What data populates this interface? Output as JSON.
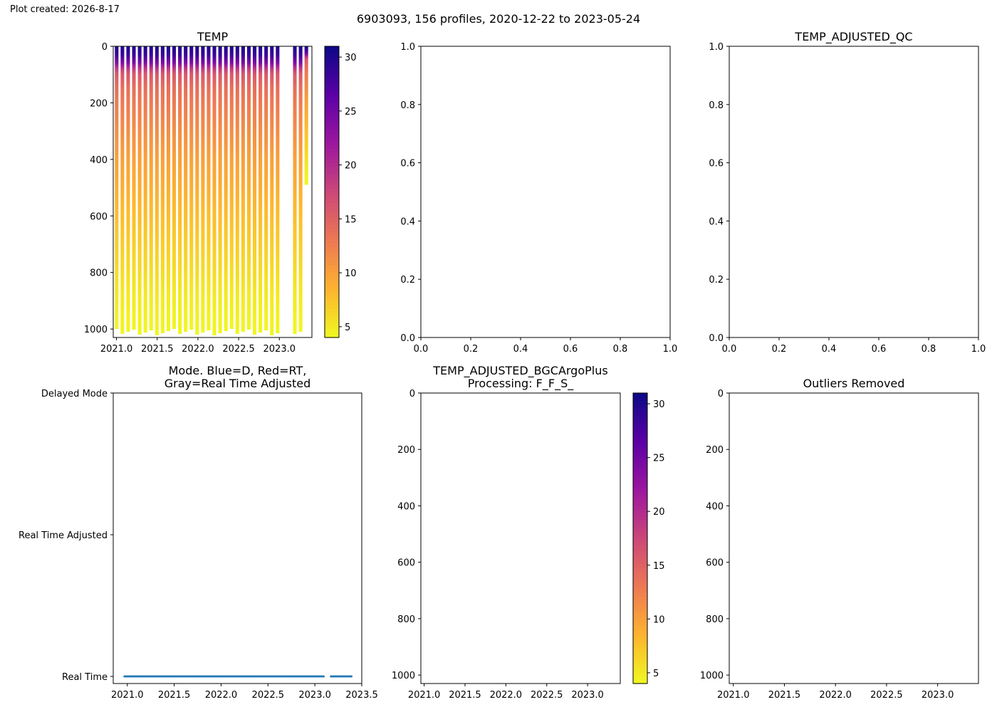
{
  "header": {
    "created": "Plot created: 2026-8-17",
    "title": "6903093, 156 profiles, 2020-12-22 to 2023-05-24"
  },
  "colors": {
    "mode_dots": "#1f77b4",
    "colormap_plasma_r": [
      "#f0f921",
      "#fdb42f",
      "#ed7953",
      "#cc4778",
      "#9c179e",
      "#5c01a6",
      "#0d0887"
    ]
  },
  "chart_data": [
    {
      "id": "temp",
      "type": "heatmap",
      "title": "TEMP",
      "xlim": [
        2020.96,
        2023.4
      ],
      "ylim": [
        1030,
        0
      ],
      "x_ticks": [
        2021.0,
        2021.5,
        2022.0,
        2022.5,
        2023.0
      ],
      "x_tick_labels": [
        "2021.0",
        "2021.5",
        "2022.0",
        "2022.5",
        "2023.0"
      ],
      "y_ticks": [
        0,
        200,
        400,
        600,
        800,
        1000
      ],
      "y_tick_labels": [
        "0",
        "200",
        "400",
        "600",
        "800",
        "1000"
      ],
      "colorbar": {
        "range": [
          4,
          31
        ],
        "ticks": [
          5,
          10,
          15,
          20,
          25,
          30
        ],
        "colormap": "plasma_r"
      },
      "profile_time_range": [
        2020.98,
        2023.38
      ],
      "depth_gaps": [
        {
          "from": 2023.06,
          "to": 2023.18,
          "depth_max": 900
        }
      ],
      "profile_max_depth_approx": [
        1000,
        1025
      ],
      "final_profile_max_depth": 490,
      "temperature_profile": {
        "depth": [
          0,
          30,
          60,
          80,
          100,
          150,
          200,
          300,
          400,
          500,
          600,
          700,
          800,
          900,
          1000,
          1030
        ],
        "temp": [
          30,
          28.5,
          24,
          19,
          16,
          14,
          13,
          11.5,
          10,
          9,
          8,
          7,
          6,
          5,
          4.3,
          4.2
        ]
      }
    },
    {
      "id": "empty-top-middle",
      "type": "scatter",
      "title": "",
      "xlim": [
        0,
        1
      ],
      "ylim": [
        0,
        1
      ],
      "x_ticks": [
        0,
        0.2,
        0.4,
        0.6,
        0.8,
        1.0
      ],
      "x_tick_labels": [
        "0.0",
        "0.2",
        "0.4",
        "0.6",
        "0.8",
        "1.0"
      ],
      "y_ticks": [
        0,
        0.2,
        0.4,
        0.6,
        0.8,
        1.0
      ],
      "y_tick_labels": [
        "0.0",
        "0.2",
        "0.4",
        "0.6",
        "0.8",
        "1.0"
      ],
      "series": []
    },
    {
      "id": "temp-adjusted-qc",
      "type": "scatter",
      "title": "TEMP_ADJUSTED_QC",
      "xlim": [
        0,
        1
      ],
      "ylim": [
        0,
        1
      ],
      "x_ticks": [
        0,
        0.2,
        0.4,
        0.6,
        0.8,
        1.0
      ],
      "x_tick_labels": [
        "0.0",
        "0.2",
        "0.4",
        "0.6",
        "0.8",
        "1.0"
      ],
      "y_ticks": [
        0,
        0.2,
        0.4,
        0.6,
        0.8,
        1.0
      ],
      "y_tick_labels": [
        "0.0",
        "0.2",
        "0.4",
        "0.6",
        "0.8",
        "1.0"
      ],
      "series": []
    },
    {
      "id": "mode",
      "type": "scatter",
      "title": [
        "Mode. Blue=D, Red=RT,",
        "Gray=Real Time Adjusted"
      ],
      "xlim": [
        2020.85,
        2023.5
      ],
      "ylim": [
        -0.05,
        2.0
      ],
      "x_ticks": [
        2021.0,
        2021.5,
        2022.0,
        2022.5,
        2023.0,
        2023.5
      ],
      "x_tick_labels": [
        "2021.0",
        "2021.5",
        "2022.0",
        "2022.5",
        "2023.0",
        "2023.5"
      ],
      "y_ticks": [
        0,
        1,
        2
      ],
      "y_tick_labels": [
        "Real Time",
        "Real Time Adjusted",
        "Delayed Mode"
      ],
      "x_range": [
        2020.97,
        2023.39
      ],
      "gaps": [
        [
          2023.1,
          2023.17
        ]
      ],
      "y_value": 0
    },
    {
      "id": "temp-adjusted-bgcargoplus",
      "type": "heatmap",
      "title": [
        "TEMP_ADJUSTED_BGCArgoPlus",
        "Processing: F_F_S_"
      ],
      "xlim": [
        2020.96,
        2023.4
      ],
      "ylim": [
        1030,
        0
      ],
      "x_ticks": [
        2021.0,
        2021.5,
        2022.0,
        2022.5,
        2023.0
      ],
      "x_tick_labels": [
        "2021.0",
        "2021.5",
        "2022.0",
        "2022.5",
        "2023.0"
      ],
      "y_ticks": [
        0,
        200,
        400,
        600,
        800,
        1000
      ],
      "y_tick_labels": [
        "0",
        "200",
        "400",
        "600",
        "800",
        "1000"
      ],
      "colorbar": {
        "range": [
          4,
          31
        ],
        "ticks": [
          5,
          10,
          15,
          20,
          25,
          30
        ],
        "colormap": "plasma_r"
      },
      "values": []
    },
    {
      "id": "outliers-removed",
      "type": "heatmap",
      "title": "Outliers Removed",
      "xlim": [
        2020.96,
        2023.4
      ],
      "ylim": [
        1030,
        0
      ],
      "x_ticks": [
        2021.0,
        2021.5,
        2022.0,
        2022.5,
        2023.0
      ],
      "x_tick_labels": [
        "2021.0",
        "2021.5",
        "2022.0",
        "2022.5",
        "2023.0"
      ],
      "y_ticks": [
        0,
        200,
        400,
        600,
        800,
        1000
      ],
      "y_tick_labels": [
        "0",
        "200",
        "400",
        "600",
        "800",
        "1000"
      ],
      "values": []
    }
  ]
}
